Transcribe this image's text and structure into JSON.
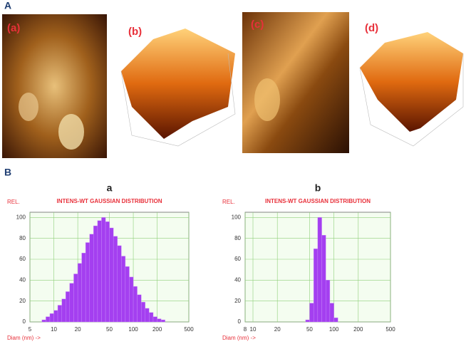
{
  "panel_labels": [
    "A",
    "B"
  ],
  "image_labels": [
    "(a)",
    "(b)",
    "(c)",
    "(d)"
  ],
  "chart_data": [
    {
      "type": "histogram",
      "heading": "a",
      "title": "INTENS-WT GAUSSIAN DISTRIBUTION",
      "ylabel": "REL.",
      "xlabel": "Diam (nm) ->",
      "xscale": "log",
      "xlim": [
        5,
        500
      ],
      "xticks": [
        5,
        10,
        20,
        50,
        100,
        200,
        500
      ],
      "ylim": [
        0,
        105
      ],
      "yticks": [
        0,
        20,
        40,
        60,
        80,
        100
      ],
      "grid": true,
      "color": "#a43ff0",
      "bins": [
        7.08,
        7.94,
        8.91,
        10,
        11.2,
        12.6,
        14.1,
        15.8,
        17.8,
        20,
        22.4,
        25.1,
        28.2,
        31.6,
        35.5,
        39.8,
        44.7,
        50.1,
        56.2,
        63.1,
        70.8,
        79.4,
        89.1,
        100,
        112,
        126,
        141,
        158,
        178,
        200,
        224,
        251
      ],
      "values": [
        2,
        5,
        8,
        11,
        16,
        22,
        29,
        37,
        46,
        56,
        66,
        76,
        84,
        92,
        97,
        100,
        96,
        90,
        82,
        73,
        63,
        53,
        43,
        34,
        26,
        19,
        13,
        9,
        5,
        3,
        2
      ]
    },
    {
      "type": "histogram",
      "heading": "b",
      "title": "INTENS-WT GAUSSIAN DISTRIBUTION",
      "ylabel": "REL.",
      "xlabel": "Diam (nm) ->",
      "xscale": "log",
      "xlim": [
        8,
        500
      ],
      "xticks": [
        8,
        10,
        20,
        50,
        100,
        200,
        500
      ],
      "ylim": [
        0,
        105
      ],
      "yticks": [
        0,
        20,
        40,
        60,
        80,
        100
      ],
      "grid": true,
      "color": "#a43ff0",
      "bins": [
        44.7,
        50.1,
        56.2,
        63.1,
        70.8,
        79.4,
        89.1,
        100,
        112
      ],
      "values": [
        2,
        18,
        70,
        100,
        83,
        40,
        18,
        4
      ]
    }
  ]
}
